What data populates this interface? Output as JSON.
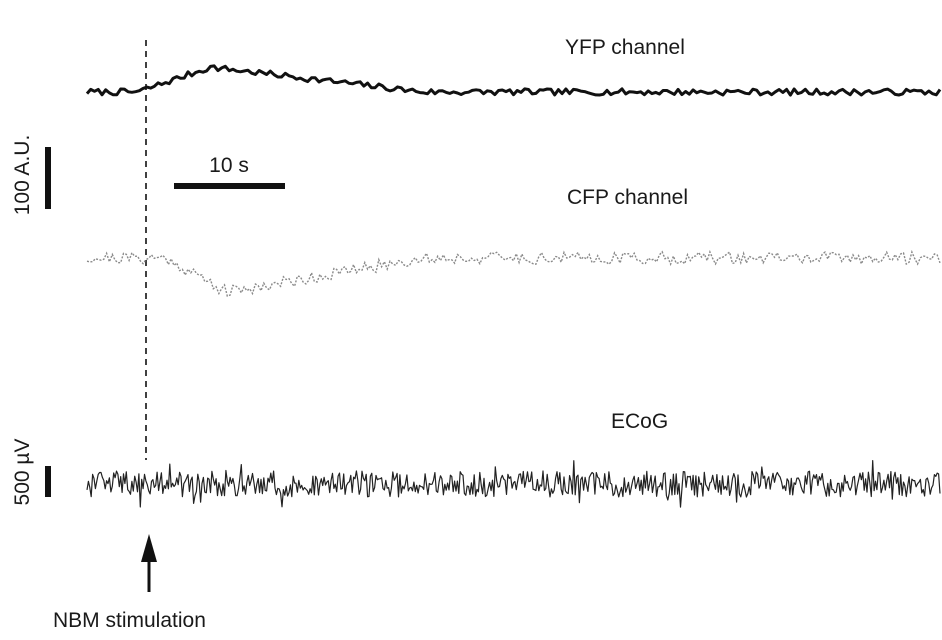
{
  "chart_data": {
    "type": "line",
    "title": "",
    "xlabel": "",
    "ylabel": "",
    "grid": false,
    "legend": "none",
    "traces": [
      {
        "label": "YFP channel",
        "color": "#111111",
        "style": "solid",
        "x_range_s": [
          0,
          76
        ],
        "baseline": 0,
        "samples_per_s": 3,
        "noise_au": 5,
        "response": {
          "direction": "up",
          "peak_au": 40,
          "onset_s": 4.5,
          "peak_s": 11,
          "decay_end_s": 30
        }
      },
      {
        "label": "CFP channel",
        "color": "#8a8a8a",
        "style": "dotted",
        "x_range_s": [
          0,
          76
        ],
        "baseline": 0,
        "samples_per_s": 4,
        "noise_au": 10,
        "response": {
          "direction": "down",
          "peak_au": 55,
          "onset_s": 7,
          "peak_s": 12.5,
          "decay_end_s": 30
        }
      },
      {
        "label": "ECoG",
        "color": "#222222",
        "style": "dense",
        "x_range_s": [
          0,
          76
        ],
        "baseline": 0,
        "samples_per_s": 8,
        "noise_uv": 250
      }
    ],
    "stimulus": {
      "label": "NBM stimulation",
      "time_s": 5
    },
    "scale_bars": {
      "time": {
        "label": "10 s",
        "value_s": 10
      },
      "fluorescence": {
        "label": "100 A.U.",
        "value": 100
      },
      "ecog": {
        "label": "500 µV",
        "value": 500
      }
    }
  }
}
